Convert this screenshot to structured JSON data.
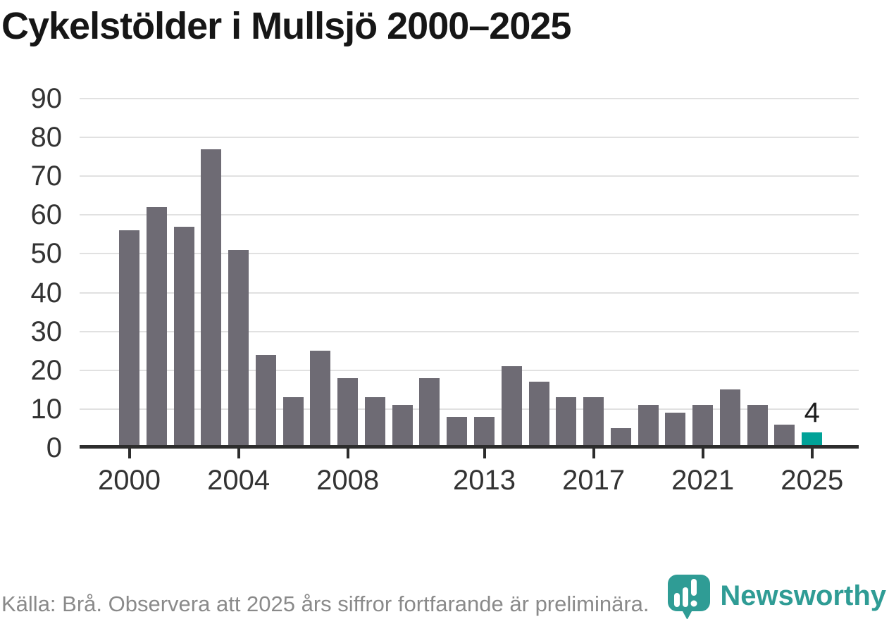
{
  "title": "Cykelstölder i Mullsjö 2000–2025",
  "footer": {
    "source_note": "Källa: Brå. Observera att 2025 års siffror fortfarande är preliminära."
  },
  "branding": {
    "logo_text": "Newsworthy",
    "logo_icon": "newsworthy-pin-barchart-icon"
  },
  "colors": {
    "bar": "#6e6b74",
    "highlight_bar": "#00a298",
    "grid": "#e1e1e1",
    "axis": "#2d2d2d",
    "title_text": "#161616",
    "axis_label": "#333333",
    "footer_text": "#8a8a8a",
    "brand_teal": "#2f9c95"
  },
  "chart_data": {
    "type": "bar",
    "title": "Cykelstölder i Mullsjö 2000–2025",
    "xlabel": "",
    "ylabel": "",
    "x": [
      2000,
      2001,
      2002,
      2003,
      2004,
      2005,
      2006,
      2007,
      2008,
      2009,
      2010,
      2011,
      2012,
      2013,
      2014,
      2015,
      2016,
      2017,
      2018,
      2019,
      2020,
      2021,
      2022,
      2023,
      2024,
      2025
    ],
    "values": [
      56,
      62,
      57,
      77,
      51,
      24,
      13,
      25,
      18,
      13,
      11,
      18,
      8,
      8,
      21,
      17,
      13,
      13,
      5,
      11,
      9,
      11,
      15,
      11,
      6,
      4
    ],
    "highlight_index": 25,
    "annotation": {
      "x": 2025,
      "text": "4"
    },
    "x_tick_years": [
      2000,
      2004,
      2008,
      2013,
      2017,
      2021,
      2025
    ],
    "x_tick_labels": [
      "2000",
      "2004",
      "2008",
      "2013",
      "2017",
      "2021",
      "2025"
    ],
    "y_ticks": [
      0,
      10,
      20,
      30,
      40,
      50,
      60,
      70,
      80,
      90
    ],
    "ylim": [
      0,
      90
    ],
    "grid": "horizontal",
    "legend": "none"
  }
}
